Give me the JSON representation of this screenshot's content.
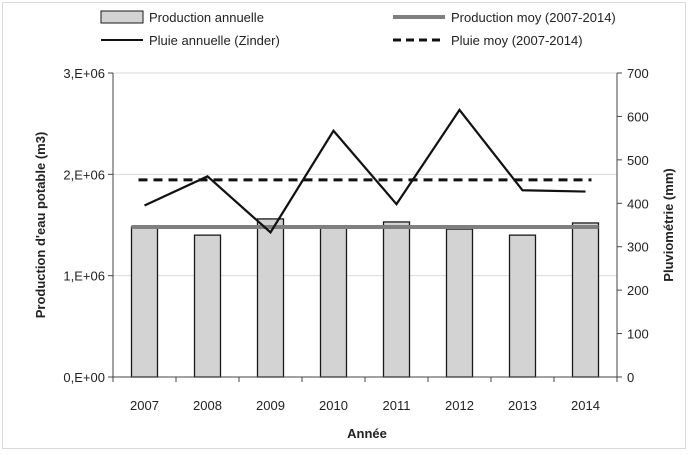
{
  "chart_data": {
    "type": "bar",
    "title": "",
    "xlabel": "Année",
    "ylabel_left": "Production d'eau potable (m3)",
    "ylabel_right": "Pluviométrie (mm)",
    "categories": [
      "2007",
      "2008",
      "2009",
      "2010",
      "2011",
      "2012",
      "2013",
      "2014"
    ],
    "ylim_left": [
      0,
      3000000
    ],
    "yticks_left": [
      "0,E+00",
      "1,E+06",
      "2,E+06",
      "3,E+06"
    ],
    "ylim_right": [
      0,
      700
    ],
    "yticks_right": [
      "0",
      "100",
      "200",
      "300",
      "400",
      "500",
      "600",
      "700"
    ],
    "grid": true,
    "legend_position": "top",
    "colors": {
      "bar_fill": "#d3d3d3",
      "bar_stroke": "#1a1a1a",
      "prod_mean": "#7f7f7f",
      "rain": "#111111",
      "rain_mean": "#111111",
      "grid": "#d9d9d9"
    },
    "series": [
      {
        "name": "Production annuelle",
        "kind": "bar",
        "axis": "left",
        "values": [
          1480000,
          1400000,
          1560000,
          1480000,
          1530000,
          1460000,
          1400000,
          1520000
        ]
      },
      {
        "name": "Production moy (2007-2014)",
        "kind": "hline",
        "axis": "left",
        "value": 1480000
      },
      {
        "name": "Pluie annuelle (Zinder)",
        "kind": "line",
        "axis": "right",
        "values": [
          395,
          462,
          333,
          567,
          398,
          615,
          430,
          427
        ]
      },
      {
        "name": "Pluie moy (2007-2014)",
        "kind": "hline-dashed",
        "axis": "right",
        "value": 454
      }
    ]
  }
}
